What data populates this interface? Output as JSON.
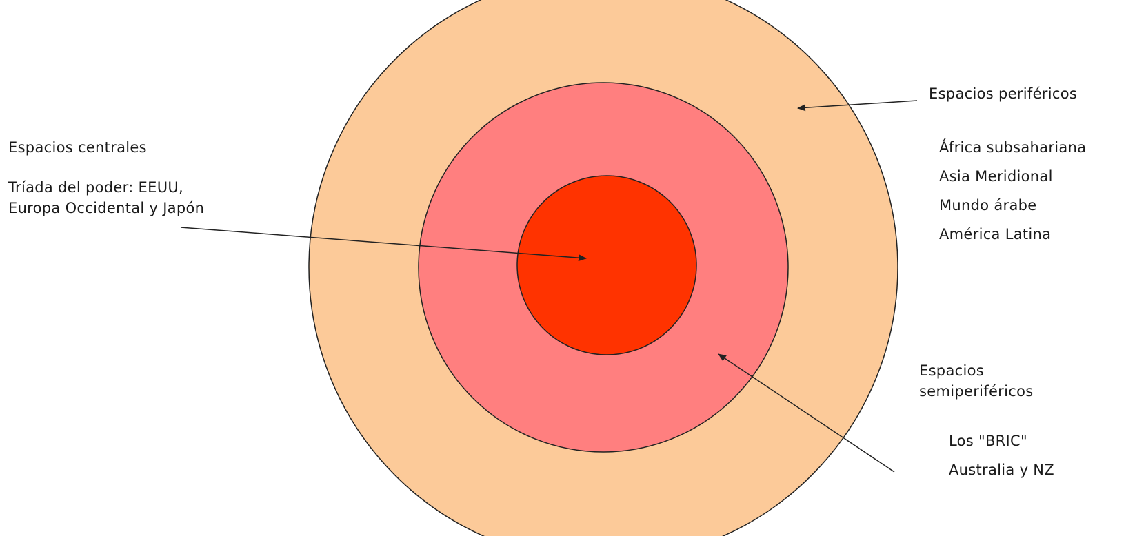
{
  "diagram": {
    "rings": [
      {
        "name": "outer-ring",
        "fill": "#FCCA99",
        "stroke": "#222222"
      },
      {
        "name": "middle-ring",
        "fill": "#FF7F7F",
        "stroke": "#222222"
      },
      {
        "name": "core-circle",
        "fill": "#FF3300",
        "stroke": "#222222"
      }
    ],
    "central": {
      "title": "Espacios centrales",
      "line1": "Tríada del poder: EEUU,",
      "line2": "Europa Occidental y Japón"
    },
    "peripheral": {
      "title": "Espacios periféricos",
      "items": [
        "África subsahariana",
        "Asia Meridional",
        "Mundo árabe",
        "América Latina"
      ]
    },
    "semiperipheral": {
      "title_line1": "Espacios",
      "title_line2": "semiperiféricos",
      "items": [
        "Los \"BRIC\"",
        "Australia y NZ"
      ]
    },
    "arrow_color": "#222222"
  }
}
